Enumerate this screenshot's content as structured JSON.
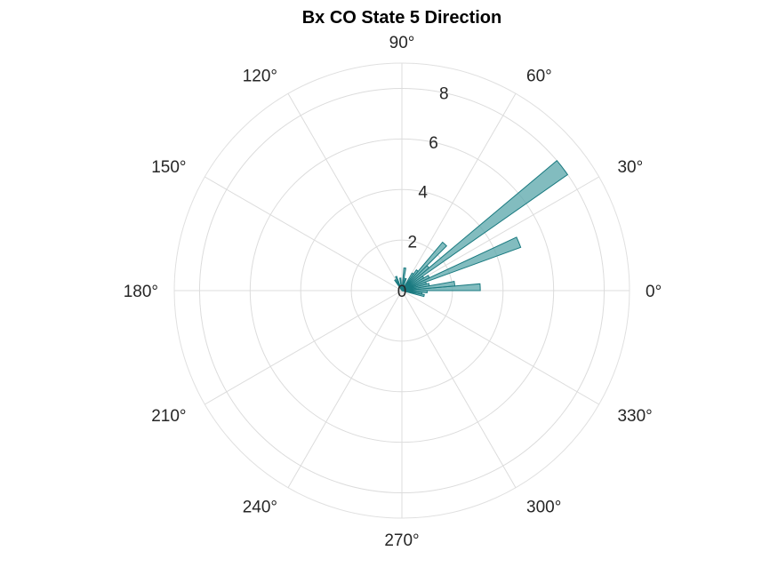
{
  "chart_data": {
    "type": "polar-histogram",
    "title": "Bx  CO State 5 Direction",
    "angle_unit": "degrees",
    "angle_ticks": [
      0,
      30,
      60,
      90,
      120,
      150,
      180,
      210,
      240,
      270,
      300,
      330
    ],
    "angle_tick_labels": [
      "0°",
      "30°",
      "60°",
      "90°",
      "120°",
      "150°",
      "180°",
      "210°",
      "240°",
      "270°",
      "300°",
      "330°"
    ],
    "radial_ticks": [
      0,
      2,
      4,
      6,
      8
    ],
    "radial_tick_labels": [
      "0",
      "2",
      "4",
      "6",
      "8"
    ],
    "rlim": [
      0,
      9
    ],
    "grid": true,
    "bar_color": "#5fa9ad",
    "bar_edge_color": "#1a7a80",
    "bin_width_deg": 5,
    "bins": [
      {
        "angle": -12.5,
        "value": 0.9
      },
      {
        "angle": -7.5,
        "value": 0.8
      },
      {
        "angle": -2.5,
        "value": 1.0
      },
      {
        "angle": 2.5,
        "value": 3.1
      },
      {
        "angle": 7.5,
        "value": 2.1
      },
      {
        "angle": 12.5,
        "value": 1.1
      },
      {
        "angle": 17.5,
        "value": 1.0
      },
      {
        "angle": 22.5,
        "value": 5.0
      },
      {
        "angle": 27.5,
        "value": 1.2
      },
      {
        "angle": 32.5,
        "value": 1.0
      },
      {
        "angle": 37.5,
        "value": 8.0
      },
      {
        "angle": 42.5,
        "value": 1.4
      },
      {
        "angle": 47.5,
        "value": 2.5
      },
      {
        "angle": 52.5,
        "value": 1.0
      },
      {
        "angle": 57.5,
        "value": 0.8
      },
      {
        "angle": 72.5,
        "value": 0.5
      },
      {
        "angle": 82.5,
        "value": 0.9
      },
      {
        "angle": 97.5,
        "value": 0.5
      },
      {
        "angle": 112.5,
        "value": 0.6
      },
      {
        "angle": 122.5,
        "value": 0.5
      }
    ]
  }
}
